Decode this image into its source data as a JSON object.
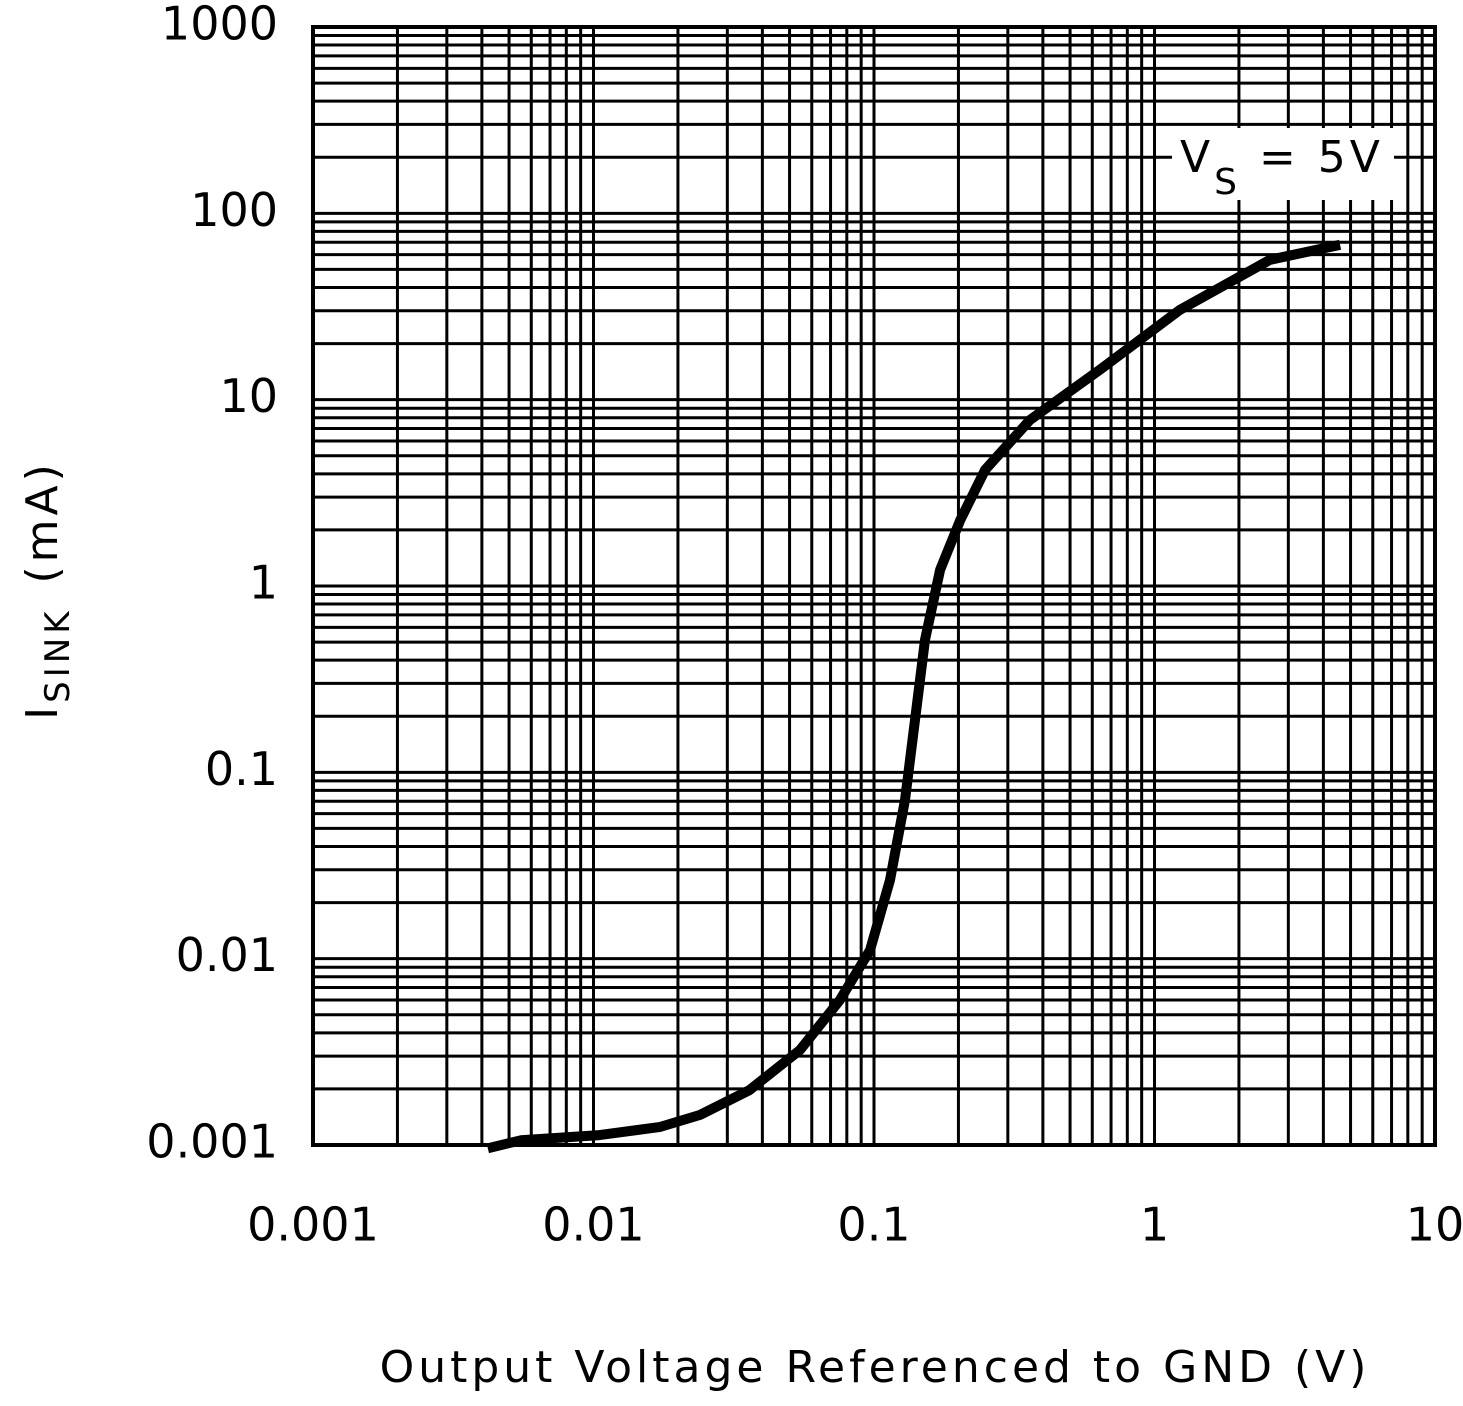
{
  "chart_data": {
    "type": "line",
    "xlabel": "Output Voltage Referenced to GND (V)",
    "ylabel": [
      "I",
      "SINK",
      "(mA)"
    ],
    "annotation": [
      "V",
      "S",
      " = 5V"
    ],
    "xscale": "log",
    "yscale": "log",
    "grid": true,
    "color": "#000000",
    "xlim": [
      0.001,
      10
    ],
    "ylim": [
      0.001,
      1000
    ],
    "xticks": [
      0.001,
      0.01,
      0.1,
      1,
      10
    ],
    "yticks": [
      0.001,
      0.01,
      0.1,
      1,
      10,
      100,
      1000
    ],
    "series": [
      {
        "x": [
          0.0042,
          0.0055,
          0.0105,
          0.0173,
          0.024,
          0.036,
          0.0545,
          0.0756,
          0.0968,
          0.114,
          0.129,
          0.14,
          0.152,
          0.172,
          0.203,
          0.249,
          0.36,
          0.64,
          1.23,
          2.58,
          4.59
        ],
        "values": [
          0.00096,
          0.00106,
          0.00113,
          0.00125,
          0.00145,
          0.00197,
          0.00324,
          0.006,
          0.0111,
          0.0264,
          0.071,
          0.191,
          0.514,
          1.22,
          2.26,
          4.2,
          7.79,
          14.5,
          30.3,
          56.3,
          67.8
        ]
      }
    ]
  }
}
